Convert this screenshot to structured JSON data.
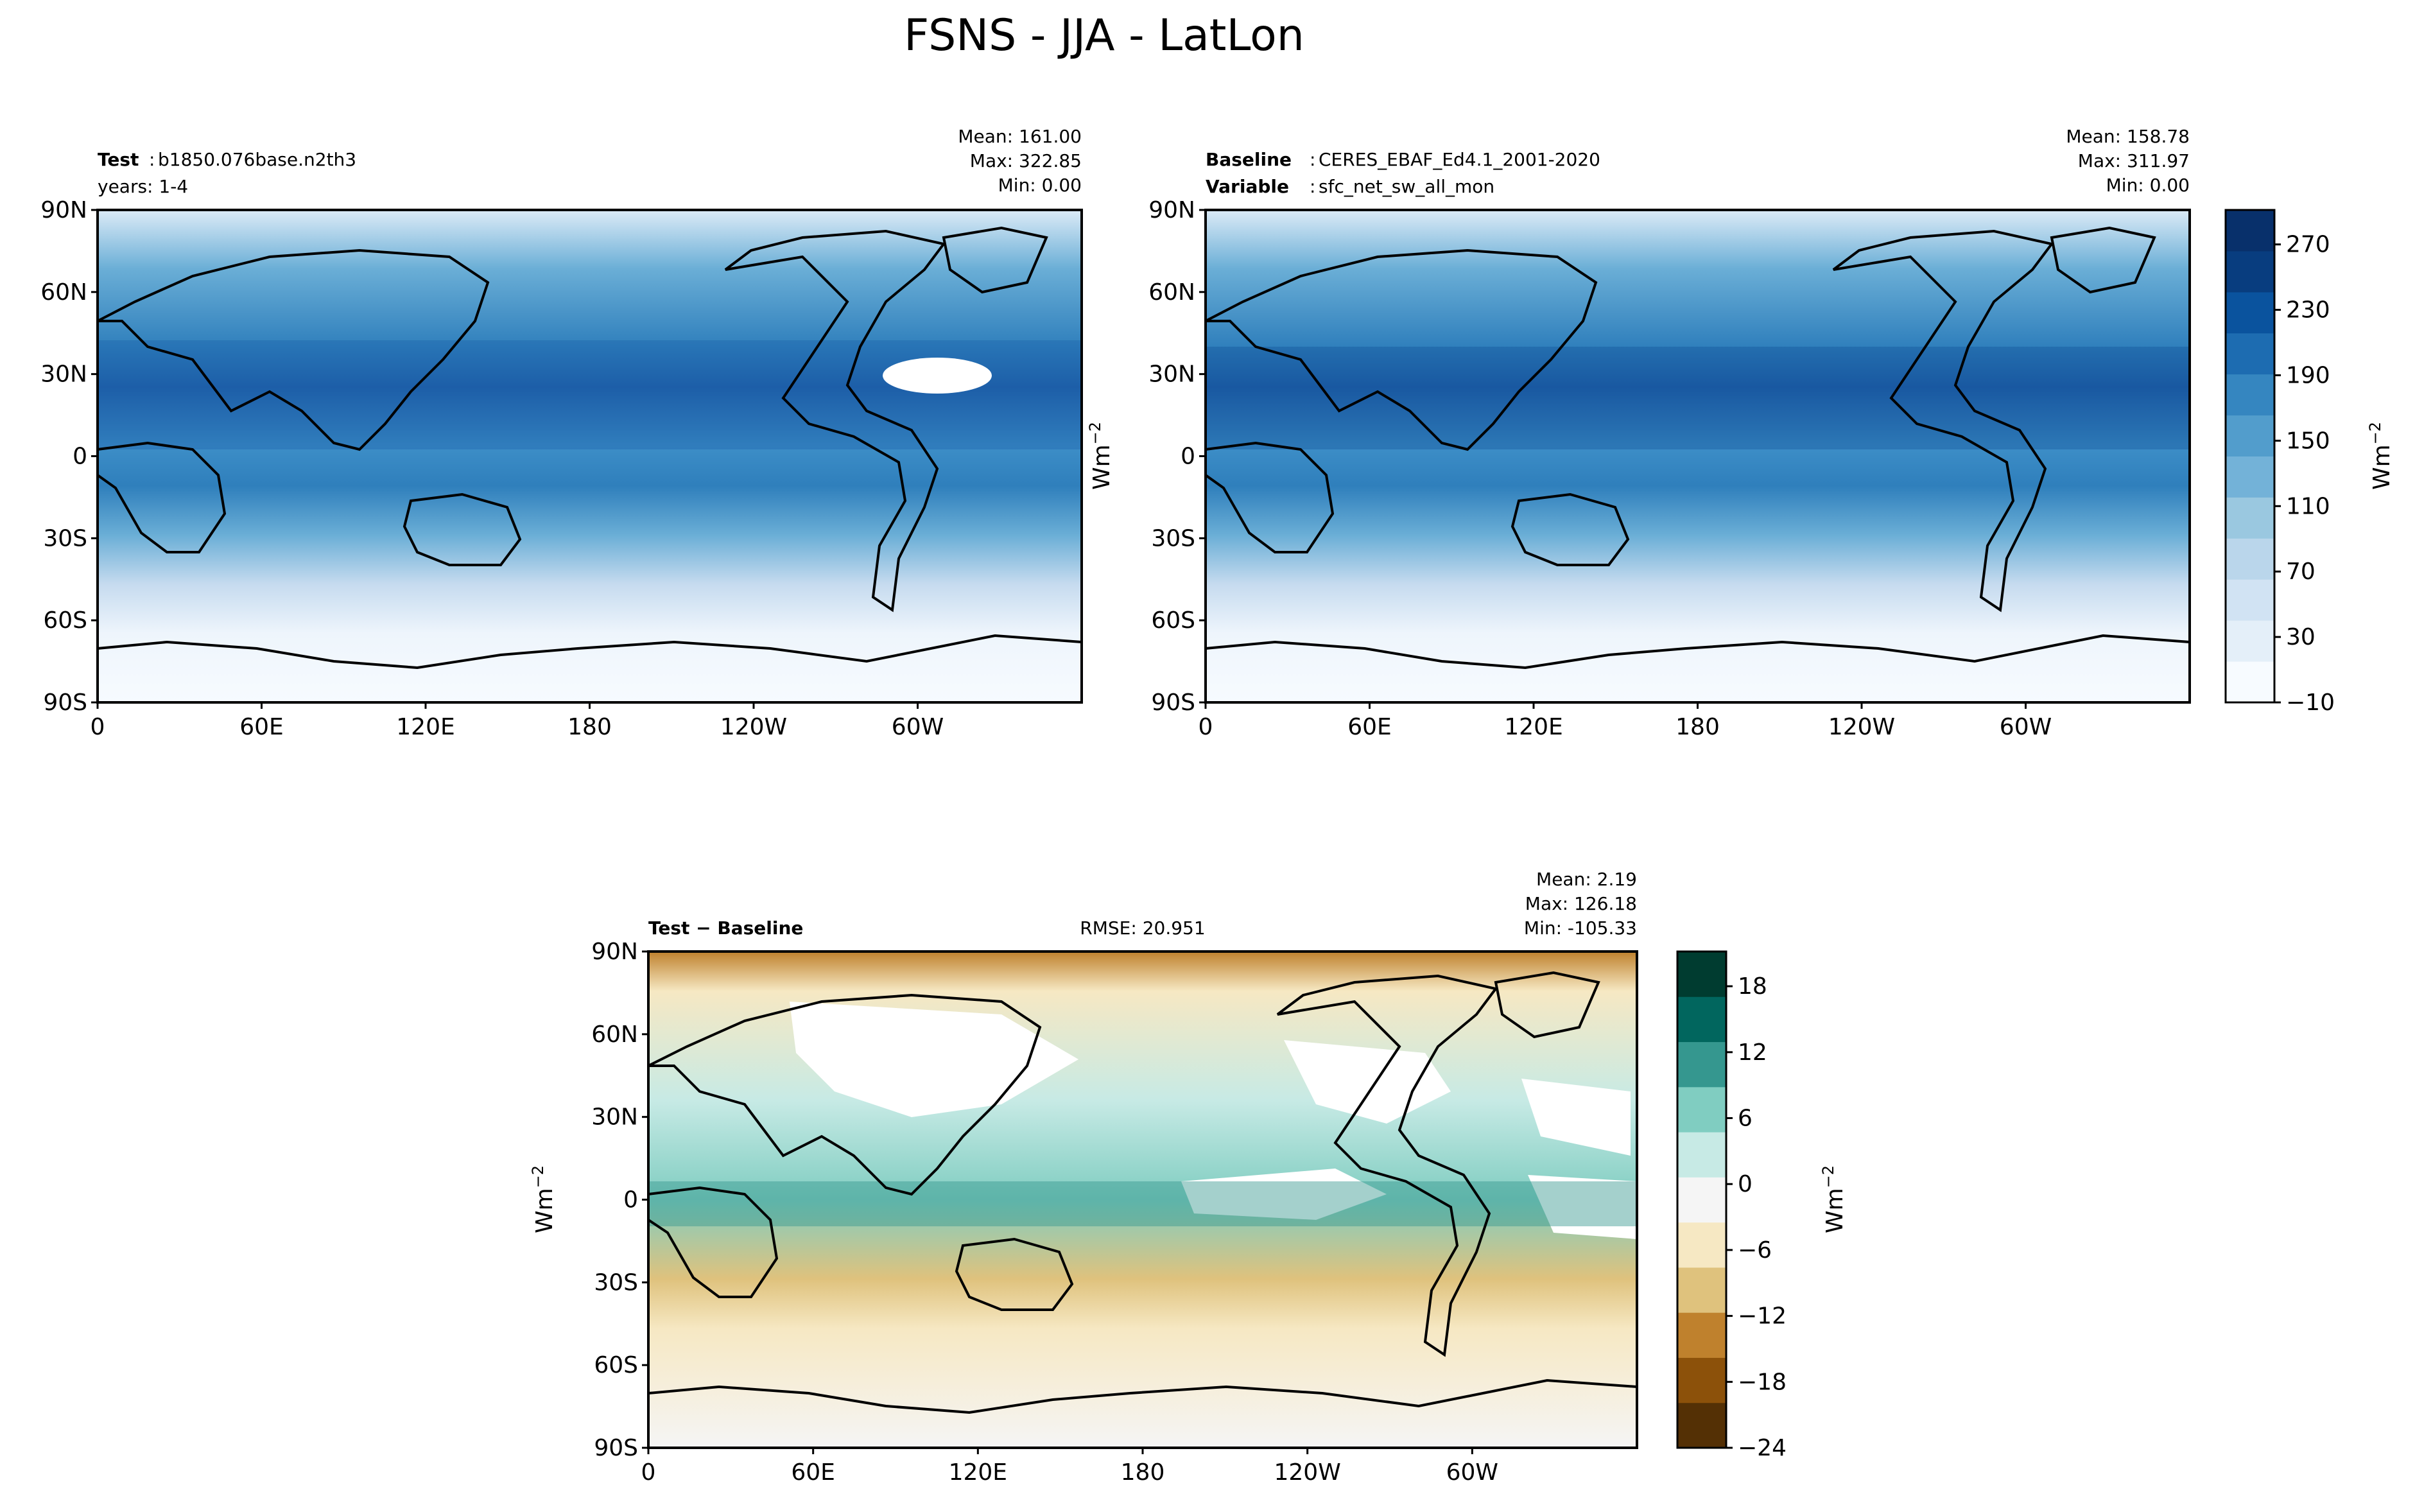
{
  "figure_title": "FSNS - JJA - LatLon",
  "chart_data": [
    {
      "type": "heatmap",
      "panel": "test",
      "left_label_bold": "Test",
      "left_label_value": "b1850.076base.n2th3",
      "left_label_line2": "years: 1-4",
      "stats": [
        "Mean: 161.00",
        "Max: 322.85",
        "Min:  0.00"
      ],
      "xticks": [
        "0",
        "60E",
        "120E",
        "180",
        "120W",
        "60W"
      ],
      "yticks": [
        "90N",
        "60N",
        "30N",
        "0",
        "30S",
        "60S",
        "90S"
      ],
      "xlim": [
        0,
        360
      ],
      "ylim": [
        -90,
        90
      ],
      "colormap": "Blues",
      "color_levels": [
        -10,
        270
      ]
    },
    {
      "type": "heatmap",
      "panel": "baseline",
      "left_label_bold": "Baseline",
      "left_label_value": "CERES_EBAF_Ed4.1_2001-2020",
      "left_label_bold2": "Variable",
      "left_label_value2": "sfc_net_sw_all_mon",
      "stats": [
        "Mean: 158.78",
        "Max: 311.97",
        "Min:  0.00"
      ],
      "xticks": [
        "0",
        "60E",
        "120E",
        "180",
        "120W",
        "60W"
      ],
      "yticks": [
        "90N",
        "60N",
        "30N",
        "0",
        "30S",
        "60S",
        "90S"
      ],
      "xlim": [
        0,
        360
      ],
      "ylim": [
        -90,
        90
      ],
      "colorbar": {
        "ticks": [
          "270",
          "230",
          "190",
          "150",
          "110",
          "70",
          "30",
          "−10"
        ],
        "label": "Wm",
        "label_sup": "−2",
        "colors": [
          "#f7fbff",
          "#e4eff9",
          "#d1e3f3",
          "#bad6eb",
          "#9ac8e0",
          "#73b2d8",
          "#529dcc",
          "#3586c0",
          "#1d6cb1",
          "#0a539e",
          "#083d7f",
          "#08306b"
        ]
      }
    },
    {
      "type": "heatmap",
      "panel": "difference",
      "left_label_bold": "Test − Baseline",
      "center_label": "RMSE: 20.951",
      "stats": [
        "Mean:  2.19",
        "Max: 126.18",
        "Min: -105.33"
      ],
      "xticks": [
        "0",
        "60E",
        "120E",
        "180",
        "120W",
        "60W"
      ],
      "yticks": [
        "90N",
        "60N",
        "30N",
        "0",
        "30S",
        "60S",
        "90S"
      ],
      "xlim": [
        0,
        360
      ],
      "ylim": [
        -90,
        90
      ],
      "side_label": "Wm",
      "side_label_sup": "−2",
      "colorbar": {
        "ticks": [
          "18",
          "12",
          "6",
          "0",
          "−6",
          "−12",
          "−18",
          "−24"
        ],
        "label": "Wm",
        "label_sup": "−2",
        "colors": [
          "#543005",
          "#8c510a",
          "#bf812d",
          "#dfc27d",
          "#f6e8c3",
          "#f5f5f5",
          "#c7eae5",
          "#80cdc1",
          "#35978f",
          "#01665e",
          "#003c30"
        ]
      }
    }
  ]
}
